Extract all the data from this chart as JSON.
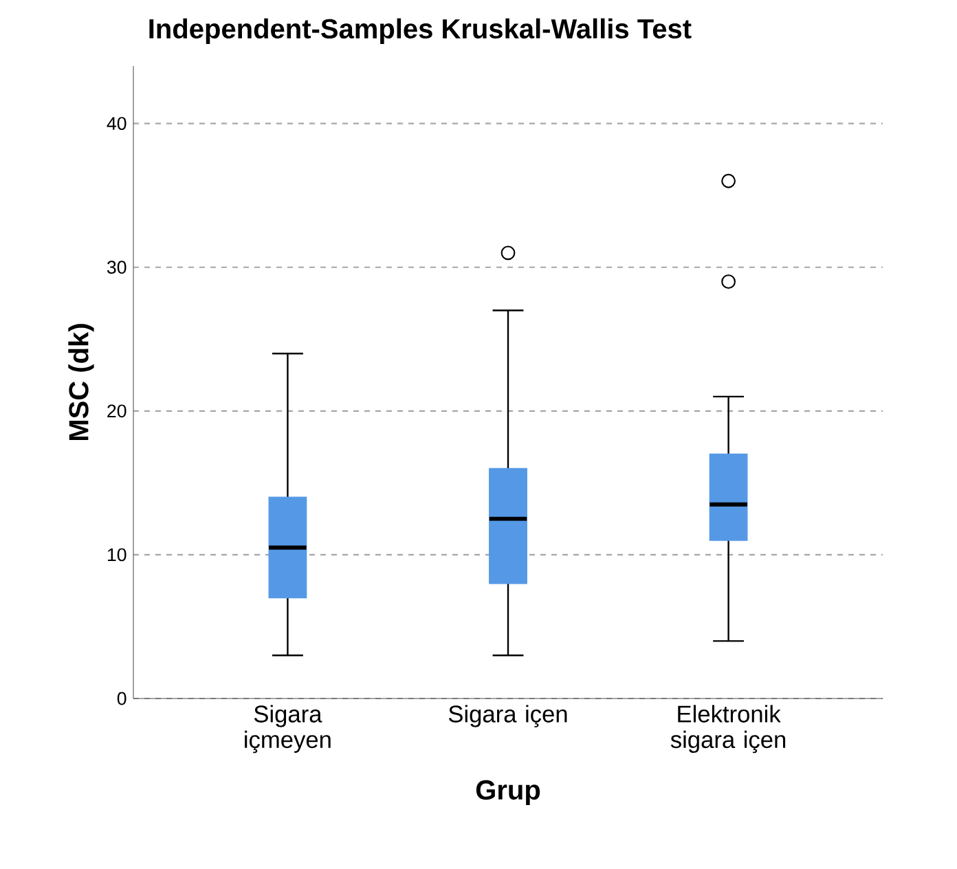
{
  "chart_data": {
    "type": "box",
    "title": "Independent-Samples Kruskal-Wallis Test",
    "xlabel": "Grup",
    "ylabel": "MSC (dk)",
    "categories": [
      "Sigara içmeyen",
      "Sigara içen",
      "Elektronik sigara içen"
    ],
    "color": "#5599e6",
    "boxes": [
      {
        "low": 3,
        "q1": 7,
        "median": 10.5,
        "q3": 14,
        "high": 24
      },
      {
        "low": 3,
        "q1": 8,
        "median": 12.5,
        "q3": 16,
        "high": 27,
        "outliers": [
          31
        ]
      },
      {
        "low": 4,
        "q1": 11,
        "median": 13.5,
        "q3": 17,
        "high": 21,
        "outliers": [
          29,
          36
        ]
      }
    ],
    "ylim": [
      0,
      44
    ],
    "yticks": [
      0,
      10,
      20,
      30,
      40
    ],
    "grid": "y"
  }
}
